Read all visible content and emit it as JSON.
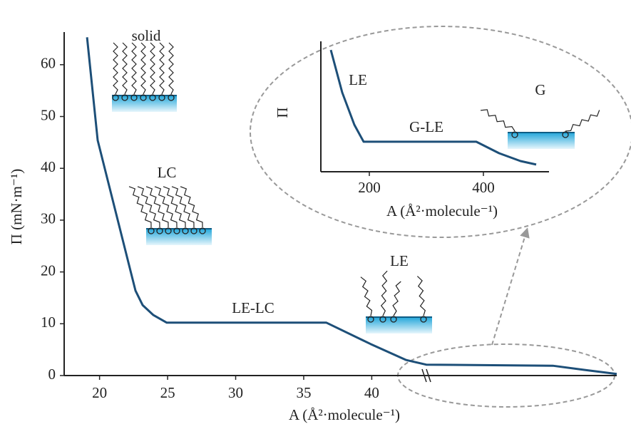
{
  "chart_data": [
    {
      "type": "line",
      "y_label": "Π (mN·m⁻¹)",
      "x_label": "A (Å²·molecule⁻¹)",
      "x": [
        19.08,
        19.86,
        22.64,
        23.16,
        23.94,
        24.94,
        36.67,
        39.91,
        42.53,
        44.0,
        53.3,
        55.6,
        58.0
      ],
      "values": [
        65.3,
        45.4,
        16.4,
        13.6,
        11.7,
        10.2,
        10.2,
        6.1,
        3.0,
        2.1,
        1.9,
        1.1,
        0.3
      ],
      "color": "#1d4f78",
      "xlim": [
        17.4,
        58.0
      ],
      "ylim": [
        0,
        66.3
      ],
      "xticks": [
        20,
        25,
        30,
        35,
        40
      ],
      "yticks": [
        0,
        10,
        20,
        30,
        40,
        50,
        60
      ],
      "annotations": [
        "solid",
        "LC",
        "LE-LC",
        "LE"
      ]
    },
    {
      "type": "line",
      "y_label": "Π",
      "x_label": "A (Å²·molecule⁻¹)",
      "x": [
        132.5,
        152.5,
        173.75,
        190,
        387.5,
        427.5,
        465,
        492.5
      ],
      "values": [
        9.34,
        6.07,
        3.6,
        2.3,
        2.3,
        1.42,
        0.82,
        0.55
      ],
      "color": "#1d4f78",
      "xlim": [
        115,
        515
      ],
      "ylim": [
        0,
        10
      ],
      "xticks": [
        200,
        400
      ],
      "annotations": [
        "LE",
        "G-LE",
        "G"
      ]
    }
  ]
}
